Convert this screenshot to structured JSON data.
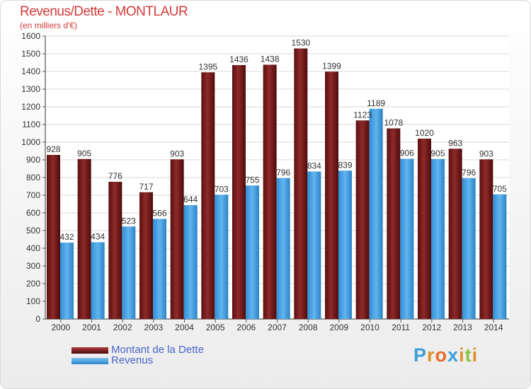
{
  "chart_data": {
    "type": "bar",
    "title": "Revenus/Dette - MONTLAUR",
    "subtitle": "(en milliers d'€)",
    "categories": [
      "2000",
      "2001",
      "2002",
      "2003",
      "2004",
      "2005",
      "2006",
      "2007",
      "2008",
      "2009",
      "2010",
      "2011",
      "2012",
      "2013",
      "2014"
    ],
    "series": [
      {
        "name": "Montant de la Dette",
        "color": "#7b1a1a",
        "values": [
          928,
          905,
          776,
          717,
          903,
          1395,
          1436,
          1438,
          1530,
          1399,
          1123,
          1078,
          1020,
          963,
          903
        ]
      },
      {
        "name": "Revenus",
        "color": "#3f9de0",
        "values": [
          432,
          434,
          523,
          566,
          644,
          703,
          755,
          796,
          834,
          839,
          1189,
          906,
          905,
          796,
          705
        ]
      }
    ],
    "yticks": [
      0,
      100,
      200,
      300,
      400,
      500,
      600,
      700,
      800,
      900,
      1000,
      1100,
      1200,
      1300,
      1400,
      1500,
      1600
    ],
    "ylim": [
      0,
      1600
    ],
    "grid": true,
    "legend_position": "bottom-left"
  },
  "logo": {
    "letters": [
      "P",
      "r",
      "o",
      "x",
      "i",
      "t",
      "i"
    ],
    "colors": [
      "#3aa0d8",
      "#e0902a",
      "#e86a2a",
      "#3aa0d8",
      "#e0902a",
      "#8ac23a",
      "#e0902a"
    ]
  }
}
